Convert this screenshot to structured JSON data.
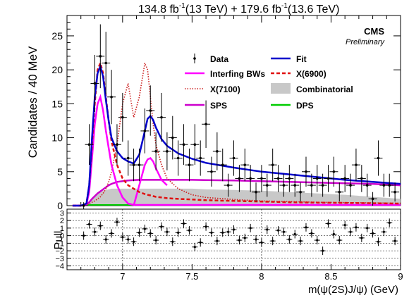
{
  "header": {
    "lumi_a": "134.8 fb",
    "lumi_a_exp": "-1",
    "lumi_a_energy": "(13 TeV) + 179.6 fb",
    "lumi_b_exp": "-1",
    "lumi_b_energy": "(13.6 TeV)",
    "experiment": "CMS",
    "status": "Preliminary"
  },
  "chart_data": [
    {
      "type": "scatter",
      "panel": "main",
      "ylabel": "Candidates / 40 MeV",
      "xlim": [
        6.6,
        9.0
      ],
      "ylim": [
        0,
        28
      ],
      "xticks": [
        "7",
        "7.5",
        "8",
        "8.5",
        "9"
      ],
      "yticks": [
        "0",
        "5",
        "10",
        "15",
        "20",
        "25"
      ],
      "legend_placement": "top-right",
      "legend": [
        {
          "label": "Data",
          "color": "#000000",
          "style": "errorbar"
        },
        {
          "label": "Fit",
          "color": "#0000cc",
          "style": "solid"
        },
        {
          "label": "Interfing BWs",
          "color": "#ff00ff",
          "style": "solid"
        },
        {
          "label": "X(6900)",
          "color": "#e01010",
          "style": "dashed"
        },
        {
          "label": "X(7100)",
          "color": "#cc2020",
          "style": "dotted"
        },
        {
          "label": "Combinatorial",
          "color": "#c8c8c8",
          "style": "fill"
        },
        {
          "label": "SPS",
          "color": "#cc00cc",
          "style": "solid"
        },
        {
          "label": "DPS",
          "color": "#00cc00",
          "style": "solid"
        }
      ],
      "data_points": {
        "x": [
          6.72,
          6.76,
          6.8,
          6.84,
          6.88,
          6.92,
          6.96,
          7.0,
          7.04,
          7.08,
          7.12,
          7.16,
          7.2,
          7.24,
          7.28,
          7.32,
          7.36,
          7.4,
          7.44,
          7.48,
          7.52,
          7.56,
          7.6,
          7.64,
          7.68,
          7.72,
          7.76,
          7.8,
          7.84,
          7.88,
          7.92,
          7.96,
          8.0,
          8.04,
          8.08,
          8.12,
          8.16,
          8.2,
          8.24,
          8.28,
          8.32,
          8.36,
          8.4,
          8.44,
          8.48,
          8.52,
          8.56,
          8.6,
          8.64,
          8.68,
          8.72,
          8.76,
          8.8,
          8.84,
          8.88,
          8.92,
          8.96
        ],
        "y": [
          0,
          9,
          18,
          22,
          21,
          16,
          9,
          13,
          7,
          6,
          6,
          11,
          14,
          8,
          13,
          8,
          10,
          7,
          9,
          6,
          9,
          7,
          12,
          5,
          8,
          6,
          3,
          7,
          4,
          6,
          4,
          2,
          4,
          3,
          6,
          4,
          3,
          4,
          3,
          2,
          5,
          3,
          4,
          3,
          4,
          5,
          2,
          4,
          3,
          6,
          4,
          3,
          1,
          7,
          3,
          3,
          2
        ],
        "err": [
          0.5,
          3,
          4.2,
          4.7,
          4.6,
          4,
          3,
          3.6,
          2.6,
          2.4,
          2.4,
          3.3,
          3.7,
          2.8,
          3.6,
          2.8,
          3.2,
          2.6,
          3,
          2.4,
          3,
          2.6,
          3.5,
          2.2,
          2.8,
          2.4,
          1.7,
          2.6,
          2,
          2.4,
          2,
          1.4,
          2,
          1.7,
          2.4,
          2,
          1.7,
          2,
          1.7,
          1.4,
          2.2,
          1.7,
          2,
          1.7,
          2,
          2.2,
          1.4,
          2,
          1.7,
          2.4,
          2,
          1.7,
          1,
          2.6,
          1.7,
          1.7,
          1.4
        ]
      },
      "curves": {
        "x": [
          6.64,
          6.7,
          6.74,
          6.76,
          6.78,
          6.8,
          6.82,
          6.84,
          6.86,
          6.88,
          6.9,
          6.92,
          6.96,
          7.0,
          7.04,
          7.08,
          7.12,
          7.16,
          7.18,
          7.2,
          7.22,
          7.24,
          7.28,
          7.32,
          7.4,
          7.5,
          7.6,
          7.8,
          8.0,
          8.2,
          8.4,
          8.6,
          8.8,
          9.0
        ],
        "fit": [
          0,
          0,
          0.3,
          3,
          10,
          16,
          19.5,
          20.5,
          19,
          15.5,
          12.5,
          10,
          8,
          7,
          6.5,
          6.2,
          7.5,
          11,
          12.8,
          13.2,
          12.6,
          11.5,
          9.8,
          8.8,
          7.7,
          6.9,
          6.3,
          5.6,
          5.0,
          4.6,
          4.2,
          3.8,
          3.5,
          3.2
        ],
        "interfering_bws": [
          0,
          0,
          0.2,
          2,
          7,
          12,
          15,
          16,
          14,
          11,
          8.5,
          6,
          3,
          1.2,
          0.3,
          0.1,
          0.1,
          0.1,
          0.1,
          0.1,
          0.1,
          0.1,
          0.1,
          0.1,
          0.1,
          0.1,
          0.1,
          0.1,
          0.1,
          0.1,
          0.1,
          0.1,
          0.1,
          0.1
        ],
        "x6900": [
          0,
          0,
          0.3,
          3,
          9,
          15,
          20,
          21,
          19.5,
          16,
          12.5,
          9.5,
          6,
          4,
          3,
          2.5,
          2,
          1.7,
          1.6,
          1.5,
          1.4,
          1.3,
          1.2,
          1.1,
          1,
          0.9,
          0.8,
          0.7,
          0.6,
          0.5,
          0.45,
          0.4,
          0.35,
          0.3
        ],
        "x7100": [
          0,
          0,
          0.1,
          0.3,
          0.5,
          0.7,
          1,
          1.3,
          1.8,
          2.5,
          3.5,
          5,
          9,
          15,
          18,
          13,
          16,
          21,
          20,
          16,
          12,
          9,
          6,
          4,
          2.5,
          1.6,
          1.2,
          0.9,
          0.7,
          0.6,
          0.5,
          0.45,
          0.4,
          0.35
        ],
        "sps": [
          0,
          0,
          0.1,
          0.5,
          1.0,
          1.4,
          1.8,
          2.1,
          2.4,
          2.7,
          3.0,
          3.2,
          3.5,
          3.6,
          3.7,
          3.75,
          3.8,
          3.8,
          3.8,
          3.8,
          3.8,
          3.8,
          3.8,
          3.8,
          3.8,
          3.8,
          3.75,
          3.7,
          3.6,
          3.5,
          3.4,
          3.3,
          3.2,
          3.0
        ],
        "sps_peak": [
          0,
          0,
          0,
          0,
          0,
          0,
          0,
          0,
          0,
          0,
          0,
          0,
          0,
          0,
          0,
          0,
          3,
          6,
          6.8,
          7,
          6.5,
          5.5,
          3.8,
          3,
          0,
          0,
          0,
          0,
          0,
          0,
          0,
          0,
          0,
          0
        ],
        "combinatorial": [
          0,
          0,
          0.1,
          0.5,
          1.0,
          1.4,
          1.7,
          2,
          2.2,
          2.3,
          2.4,
          2.5,
          2.5,
          2.5,
          2.5,
          2.5,
          2.5,
          2.5,
          2.5,
          2.5,
          2.5,
          2.5,
          2.5,
          2.5,
          2.5,
          2.5,
          2.4,
          2.3,
          2.2,
          2.0,
          1.8,
          1.6,
          1.3,
          1.0
        ]
      }
    },
    {
      "type": "scatter",
      "panel": "pull",
      "xlabel": "m(ψ(2S)J/ψ) (GeV)",
      "ylabel": "Pull",
      "xlim": [
        6.6,
        9.0
      ],
      "ylim": [
        -4.5,
        3.5
      ],
      "yticks": [
        "3",
        "2",
        "1",
        "0",
        "−1",
        "−2",
        "−3",
        "−4"
      ],
      "x": [
        6.72,
        6.76,
        6.8,
        6.84,
        6.88,
        6.92,
        6.96,
        7.0,
        7.04,
        7.08,
        7.12,
        7.16,
        7.2,
        7.24,
        7.28,
        7.32,
        7.36,
        7.4,
        7.44,
        7.48,
        7.52,
        7.56,
        7.6,
        7.64,
        7.68,
        7.72,
        7.76,
        7.8,
        7.84,
        7.88,
        7.92,
        7.96,
        8.0,
        8.04,
        8.08,
        8.12,
        8.16,
        8.2,
        8.24,
        8.28,
        8.32,
        8.36,
        8.4,
        8.44,
        8.48,
        8.52,
        8.56,
        8.6,
        8.64,
        8.68,
        8.72,
        8.76,
        8.8,
        8.84,
        8.88,
        8.92,
        8.96
      ],
      "y": [
        0,
        1.5,
        0.5,
        1.3,
        -0.5,
        0.3,
        1.8,
        -0.2,
        -0.5,
        -0.8,
        0.4,
        0.9,
        0.3,
        -0.6,
        1.2,
        0.5,
        -0.8,
        0.4,
        1.6,
        0.7,
        -1.5,
        -0.9,
        1.2,
        0.4,
        -0.7,
        0.4,
        0.5,
        0.8,
        -0.6,
        -0.3,
        1.0,
        -0.5,
        -0.9,
        0.8,
        -0.7,
        0.7,
        0.5,
        -0.5,
        0.2,
        -0.7,
        1.1,
        0.3,
        -0.6,
        -2.0,
        1.6,
        0.2,
        -0.6,
        1.4,
        0.5,
        1.1,
        -0.3,
        1.0,
        0.3,
        -0.8,
        0.5,
        1.7,
        -0.7
      ]
    }
  ]
}
